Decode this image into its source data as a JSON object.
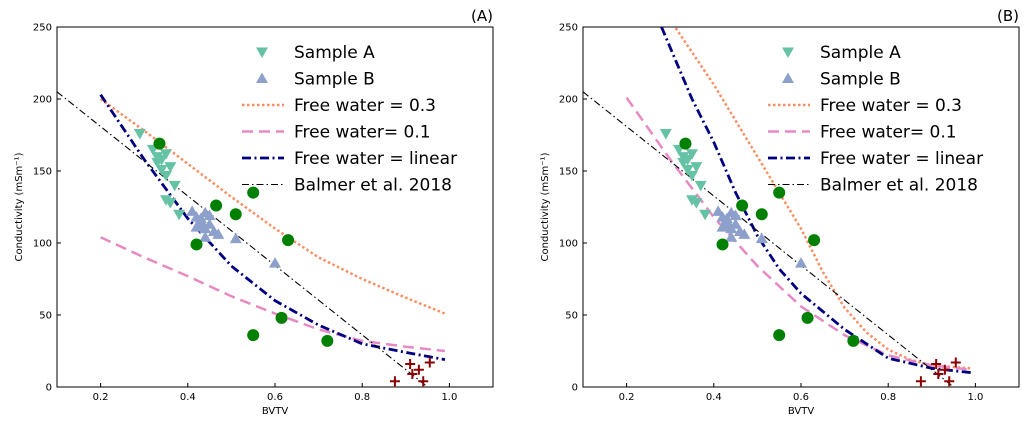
{
  "chart_data": [
    {
      "type": "scatter",
      "panel_label": "(A)",
      "xlabel": "BVTV",
      "ylabel": "Conductivity (mSm⁻¹)",
      "xlim": [
        0.1,
        1.1
      ],
      "ylim": [
        0,
        250
      ],
      "xticks": [
        "0.2",
        "0.4",
        "0.6",
        "0.8",
        "1.0"
      ],
      "yticks": [
        "0",
        "50",
        "100",
        "150",
        "200",
        "250"
      ],
      "legend_position": "upper-right",
      "series": [
        {
          "name": "Sample A",
          "kind": "marker",
          "marker": "triangle-down",
          "color": "#66c2a5",
          "x": [
            0.29,
            0.32,
            0.33,
            0.34,
            0.35,
            0.33,
            0.36,
            0.34,
            0.35,
            0.37,
            0.36,
            0.38,
            0.35
          ],
          "y": [
            176,
            165,
            160,
            158,
            162,
            156,
            153,
            151,
            147,
            140,
            128,
            120,
            130
          ]
        },
        {
          "name": "Sample B",
          "kind": "marker",
          "marker": "triangle-up",
          "color": "#8da0cb",
          "x": [
            0.41,
            0.42,
            0.43,
            0.44,
            0.45,
            0.43,
            0.44,
            0.46,
            0.45,
            0.47,
            0.42,
            0.44,
            0.43,
            0.51,
            0.6
          ],
          "y": [
            122,
            118,
            115,
            121,
            119,
            112,
            110,
            108,
            113,
            106,
            111,
            104,
            117,
            103,
            86
          ]
        },
        {
          "name": "",
          "kind": "marker",
          "marker": "circle",
          "color": "#008000",
          "x": [
            0.335,
            0.42,
            0.465,
            0.51,
            0.55,
            0.63,
            0.55,
            0.615,
            0.72
          ],
          "y": [
            169,
            99,
            126,
            120,
            135,
            102,
            36,
            48,
            32
          ]
        },
        {
          "name": "",
          "kind": "marker",
          "marker": "plus",
          "color": "#8b0000",
          "x": [
            0.875,
            0.91,
            0.915,
            0.93,
            0.94,
            0.955
          ],
          "y": [
            4,
            16,
            9,
            12,
            4,
            17
          ]
        },
        {
          "name": "Free water = 0.3",
          "kind": "line",
          "dash": "dotted",
          "color": "#fc8d62",
          "x": [
            0.2,
            0.3,
            0.4,
            0.5,
            0.6,
            0.7,
            0.8,
            0.9,
            0.99
          ],
          "y": [
            200,
            178,
            155,
            132,
            110,
            90,
            75,
            62,
            51
          ]
        },
        {
          "name": "Free water= 0.1",
          "kind": "line",
          "dash": "dashed",
          "color": "#e78ac3",
          "x": [
            0.2,
            0.3,
            0.4,
            0.5,
            0.6,
            0.7,
            0.8,
            0.9,
            0.99
          ],
          "y": [
            104,
            90,
            77,
            63,
            51,
            40,
            32,
            28,
            25
          ]
        },
        {
          "name": "Free water = linear",
          "kind": "line",
          "dash": "dashdot",
          "color": "#000080",
          "x": [
            0.2,
            0.3,
            0.4,
            0.5,
            0.6,
            0.7,
            0.8,
            0.9,
            0.99
          ],
          "y": [
            203,
            158,
            117,
            84,
            60,
            43,
            30,
            24,
            19
          ]
        },
        {
          "name": "Balmer et al. 2018",
          "kind": "line",
          "dash": "dashdot-thin",
          "color": "#000000",
          "x": [
            0.1,
            0.95
          ],
          "y": [
            205,
            0
          ]
        }
      ]
    },
    {
      "type": "scatter",
      "panel_label": "(B)",
      "xlabel": "BVTV",
      "ylabel": "Conductivity (mSm⁻¹)",
      "xlim": [
        0.1,
        1.1
      ],
      "ylim": [
        0,
        250
      ],
      "xticks": [
        "0.2",
        "0.4",
        "0.6",
        "0.8",
        "1.0"
      ],
      "yticks": [
        "0",
        "50",
        "100",
        "150",
        "200",
        "250"
      ],
      "legend_position": "upper-right",
      "series": [
        {
          "name": "Sample A",
          "kind": "marker",
          "marker": "triangle-down",
          "color": "#66c2a5",
          "x": [
            0.29,
            0.32,
            0.33,
            0.34,
            0.35,
            0.33,
            0.36,
            0.34,
            0.35,
            0.37,
            0.36,
            0.38,
            0.35
          ],
          "y": [
            176,
            165,
            160,
            158,
            162,
            156,
            153,
            151,
            147,
            140,
            128,
            120,
            130
          ]
        },
        {
          "name": "Sample B",
          "kind": "marker",
          "marker": "triangle-up",
          "color": "#8da0cb",
          "x": [
            0.41,
            0.42,
            0.43,
            0.44,
            0.45,
            0.43,
            0.44,
            0.46,
            0.45,
            0.47,
            0.42,
            0.44,
            0.43,
            0.51,
            0.6
          ],
          "y": [
            122,
            118,
            115,
            121,
            119,
            112,
            110,
            108,
            113,
            106,
            111,
            104,
            117,
            103,
            86
          ]
        },
        {
          "name": "",
          "kind": "marker",
          "marker": "circle",
          "color": "#008000",
          "x": [
            0.335,
            0.42,
            0.465,
            0.51,
            0.55,
            0.63,
            0.55,
            0.615,
            0.72
          ],
          "y": [
            169,
            99,
            126,
            120,
            135,
            102,
            36,
            48,
            32
          ]
        },
        {
          "name": "",
          "kind": "marker",
          "marker": "plus",
          "color": "#8b0000",
          "x": [
            0.875,
            0.91,
            0.915,
            0.93,
            0.94,
            0.955
          ],
          "y": [
            4,
            16,
            9,
            12,
            4,
            17
          ]
        },
        {
          "name": "Free water = 0.3",
          "kind": "line",
          "dash": "dotted",
          "color": "#fc8d62",
          "x": [
            0.3,
            0.4,
            0.5,
            0.6,
            0.65,
            0.7,
            0.75,
            0.8,
            0.85,
            0.9,
            0.99
          ],
          "y": [
            255,
            210,
            160,
            110,
            80,
            55,
            38,
            26,
            19,
            15,
            13
          ]
        },
        {
          "name": "Free water= 0.1",
          "kind": "line",
          "dash": "dashed",
          "color": "#e78ac3",
          "x": [
            0.2,
            0.3,
            0.4,
            0.5,
            0.6,
            0.7,
            0.8,
            0.9,
            0.99
          ],
          "y": [
            201,
            158,
            118,
            84,
            56,
            36,
            22,
            15,
            12
          ]
        },
        {
          "name": "Free water = linear",
          "kind": "line",
          "dash": "dashdot",
          "color": "#000080",
          "x": [
            0.28,
            0.35,
            0.4,
            0.45,
            0.5,
            0.55,
            0.6,
            0.7,
            0.8,
            0.9,
            0.99
          ],
          "y": [
            250,
            200,
            170,
            135,
            105,
            82,
            65,
            40,
            20,
            13,
            10
          ]
        },
        {
          "name": "Balmer et al. 2018",
          "kind": "line",
          "dash": "dashdot-thin",
          "color": "#000000",
          "x": [
            0.1,
            0.95
          ],
          "y": [
            205,
            0
          ]
        }
      ]
    }
  ]
}
